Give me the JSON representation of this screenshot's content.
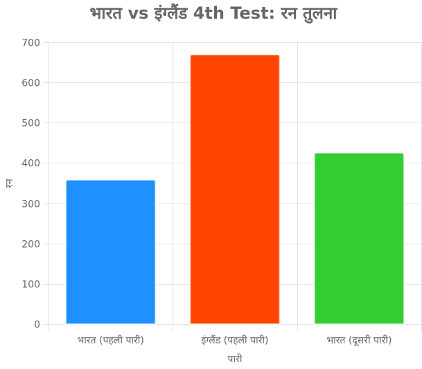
{
  "chart_data": {
    "type": "bar",
    "title": "भारत vs इंग्लैंड 4th Test: रन तुलना",
    "xlabel": "पारी",
    "ylabel": "रन",
    "categories": [
      "भारत (पहली पारी)",
      "इंग्लैंड (पहली पारी)",
      "भारत (दूसरी पारी)"
    ],
    "values": [
      358,
      669,
      425
    ],
    "colors": [
      "#1e90ff",
      "#ff4500",
      "#32cd32"
    ],
    "ylim": [
      0,
      700
    ],
    "yticks": [
      0,
      100,
      200,
      300,
      400,
      500,
      600,
      700
    ],
    "grid": true,
    "legend": false
  }
}
